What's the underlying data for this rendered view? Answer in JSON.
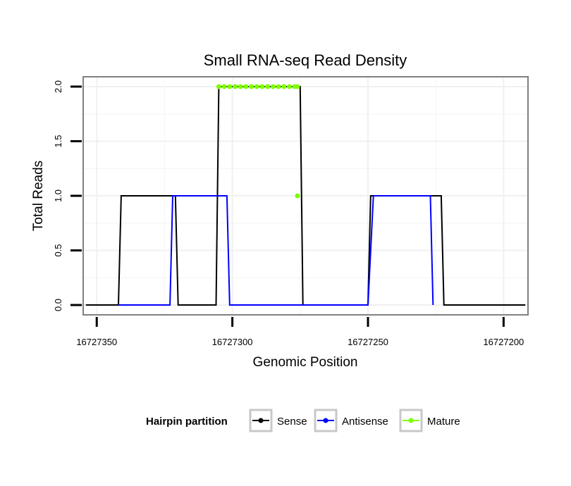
{
  "chart_data": {
    "type": "line",
    "title": "Small RNA-seq Read Density",
    "xlabel": "Genomic Position",
    "ylabel": "Total Reads",
    "xlim": [
      16727355,
      16727191
    ],
    "ylim": [
      -0.09,
      2.09
    ],
    "x_reversed": true,
    "x_ticks": [
      16727350,
      16727300,
      16727250,
      16727200
    ],
    "x_tick_labels": [
      "16727350",
      "16727300",
      "16727250",
      "16727200"
    ],
    "y_ticks": [
      0.0,
      0.5,
      1.0,
      1.5,
      2.0
    ],
    "y_tick_labels": [
      "0.0",
      "0.5",
      "1.0",
      "1.5",
      "2.0"
    ],
    "grid": true,
    "legend": {
      "title": "Hairpin partition",
      "position": "bottom",
      "entries": [
        "Sense",
        "Antisense",
        "Mature"
      ]
    },
    "series": [
      {
        "name": "Sense",
        "color": "#000000",
        "kind": "line",
        "x": [
          16727354,
          16727342,
          16727341,
          16727321,
          16727320,
          16727306,
          16727305,
          16727275,
          16727274,
          16727250,
          16727249,
          16727223,
          16727222,
          16727192
        ],
        "y": [
          0,
          0,
          1,
          1,
          0,
          0,
          2,
          2,
          0,
          0,
          1,
          1,
          0,
          0
        ]
      },
      {
        "name": "Antisense",
        "color": "#0000ff",
        "kind": "line",
        "x": [
          16727342,
          16727323,
          16727322,
          16727302,
          16727301,
          16727250,
          16727248,
          16727227,
          16727226
        ],
        "y": [
          0,
          0,
          1,
          1,
          0,
          0,
          1,
          1,
          0
        ]
      },
      {
        "name": "Mature",
        "color": "#7fff00",
        "kind": "points",
        "x": [
          16727305,
          16727303,
          16727301,
          16727299,
          16727297,
          16727295,
          16727293,
          16727291,
          16727289,
          16727287,
          16727285,
          16727283,
          16727281,
          16727279,
          16727277,
          16727276,
          16727276
        ],
        "y": [
          2,
          2,
          2,
          2,
          2,
          2,
          2,
          2,
          2,
          2,
          2,
          2,
          2,
          2,
          2,
          2,
          1
        ]
      }
    ]
  }
}
